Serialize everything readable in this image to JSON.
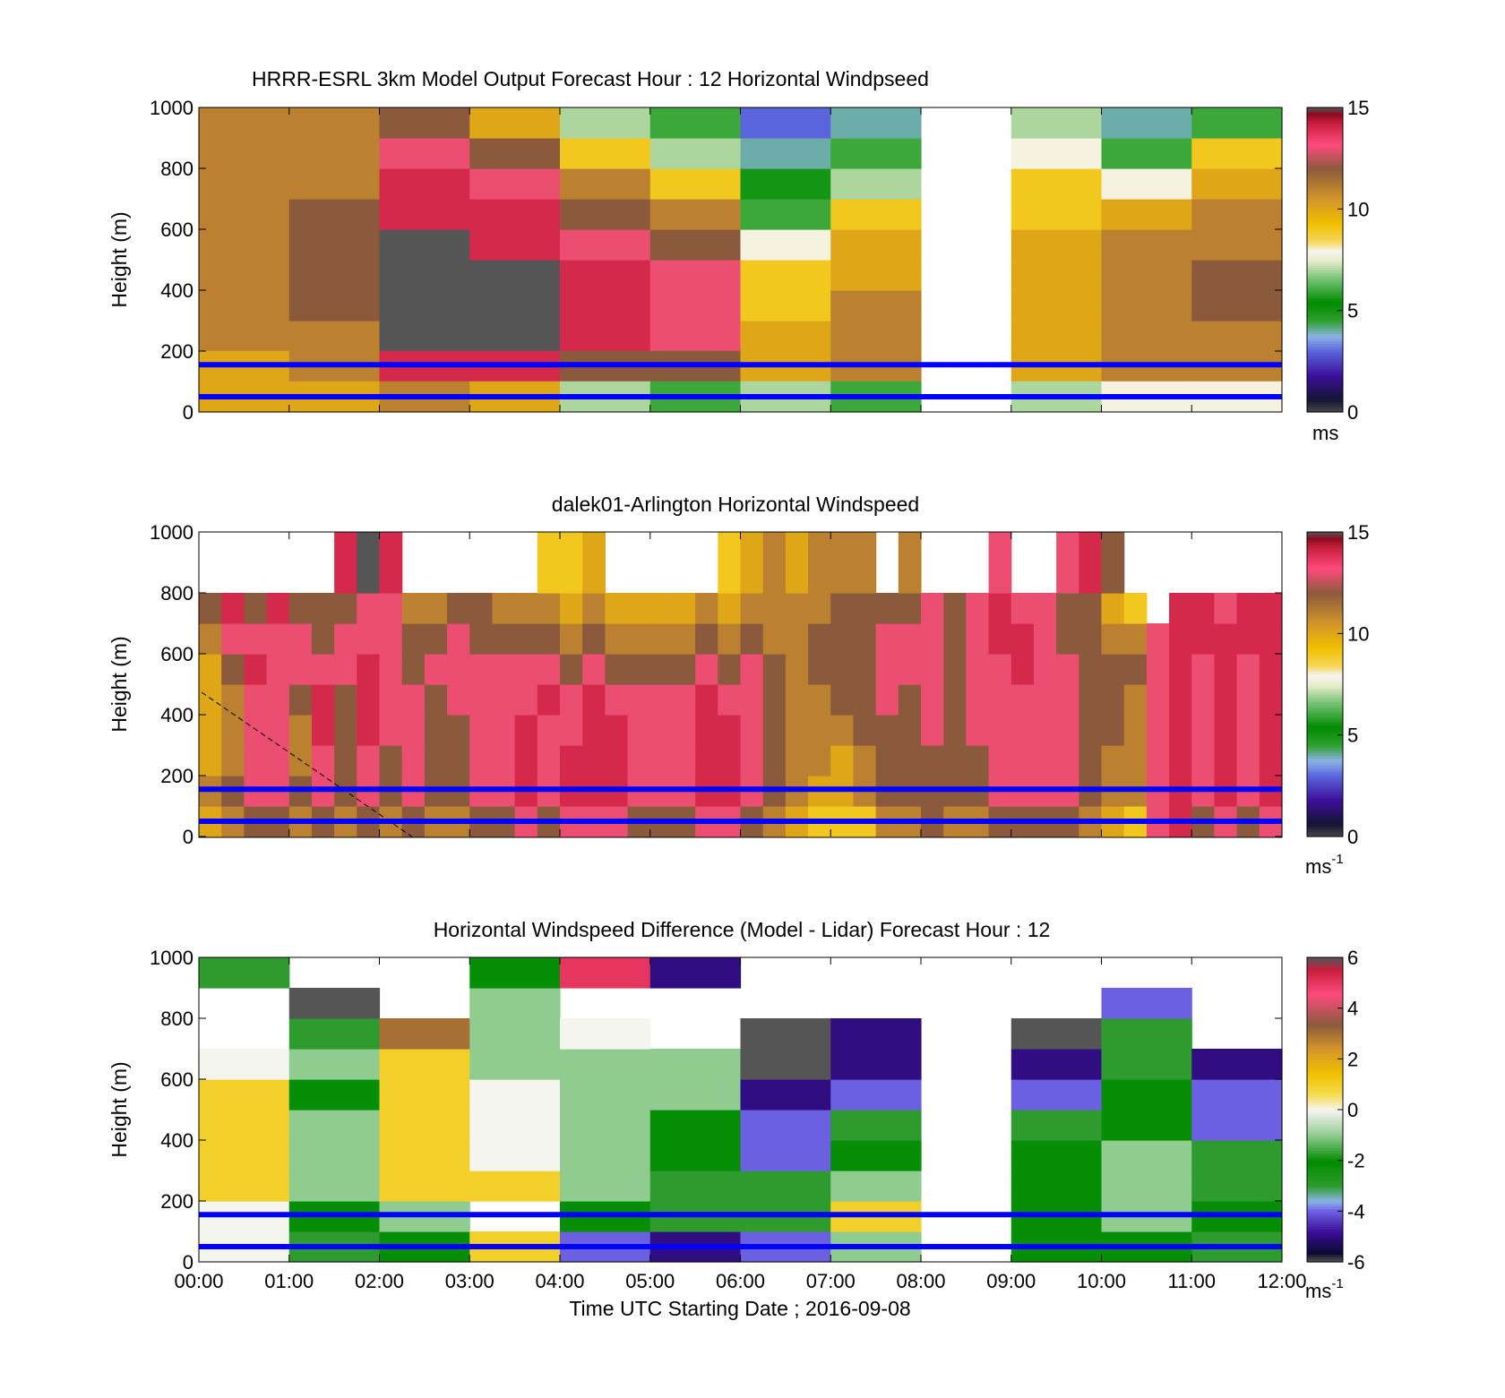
{
  "chart_data": [
    {
      "type": "heatmap",
      "title": "HRRR-ESRL 3km Model Output   Forecast Hour : 12 Horizontal Windpseed",
      "ylabel": "Height (m)",
      "xlabel": "",
      "ylim": [
        0,
        1000
      ],
      "yticks": [
        "0",
        "200",
        "400",
        "600",
        "800",
        "1000"
      ],
      "xlim_hours": [
        0,
        12
      ],
      "colorbar": {
        "min": 0,
        "max": 15,
        "ticks": [
          "0",
          "5",
          "10",
          "15"
        ],
        "unit": "ms",
        "unit_sup": "",
        "palette": "speed"
      },
      "reference_lines_m": [
        50,
        155
      ],
      "reference_line_color": "#0000ff",
      "heights_m": [
        50,
        155,
        250,
        350,
        450,
        550,
        650,
        750,
        850,
        950
      ],
      "columns": [
        {
          "start_hour": 0,
          "values": [
            10,
            10,
            11,
            11,
            11,
            11,
            11,
            11,
            11,
            11
          ]
        },
        {
          "start_hour": 1,
          "values": [
            10,
            11,
            11,
            12,
            12,
            12,
            12,
            11,
            11,
            11
          ]
        },
        {
          "start_hour": 2,
          "values": [
            11,
            14,
            15,
            15,
            15,
            15,
            14,
            14,
            13,
            12
          ]
        },
        {
          "start_hour": 3,
          "values": [
            10,
            14,
            15,
            15,
            15,
            14,
            14,
            13,
            12,
            10
          ]
        },
        {
          "start_hour": 4,
          "values": [
            7,
            12,
            14,
            14,
            14,
            13,
            12,
            11,
            9,
            7
          ]
        },
        {
          "start_hour": 5,
          "values": [
            6,
            12,
            13,
            13,
            13,
            12,
            11,
            9,
            7,
            6
          ]
        },
        {
          "start_hour": 6,
          "values": [
            7,
            10,
            10,
            9,
            9,
            8,
            6,
            5,
            4,
            3
          ]
        },
        {
          "start_hour": 7,
          "values": [
            6,
            11,
            11,
            11,
            10,
            10,
            9,
            7,
            6,
            4
          ]
        },
        {
          "start_hour": 8,
          "values": [
            null,
            null,
            null,
            null,
            null,
            null,
            null,
            null,
            null,
            null
          ]
        },
        {
          "start_hour": 9,
          "values": [
            7,
            10,
            10,
            10,
            10,
            10,
            9,
            9,
            8,
            7
          ]
        },
        {
          "start_hour": 10,
          "values": [
            8,
            11,
            11,
            11,
            11,
            11,
            10,
            8,
            6,
            4
          ]
        },
        {
          "start_hour": 11,
          "values": [
            8,
            11,
            11,
            12,
            12,
            11,
            11,
            10,
            9,
            6
          ]
        }
      ]
    },
    {
      "type": "heatmap",
      "title": "dalek01-Arlington  Horizontal Windspeed",
      "ylabel": "Height (m)",
      "xlabel": "",
      "ylim": [
        0,
        1000
      ],
      "yticks": [
        "0",
        "200",
        "400",
        "600",
        "800",
        "1000"
      ],
      "xlim_hours": [
        0,
        12
      ],
      "colorbar": {
        "min": 0,
        "max": 15,
        "ticks": [
          "0",
          "5",
          "10",
          "15"
        ],
        "unit": "ms",
        "unit_sup": "-1",
        "palette": "speed"
      },
      "reference_lines_m": [
        50,
        155
      ],
      "reference_line_color": "#0000ff",
      "heights_m": [
        50,
        150,
        250,
        350,
        450,
        550,
        650,
        750,
        850
      ],
      "columns": [
        {
          "start_hour": 0.0,
          "values": [
            10,
            11,
            10,
            10,
            10,
            10,
            11,
            12,
            null
          ]
        },
        {
          "start_hour": 0.25,
          "values": [
            11,
            12,
            11,
            11,
            11,
            12,
            13,
            14,
            null
          ]
        },
        {
          "start_hour": 0.5,
          "values": [
            12,
            13,
            13,
            13,
            13,
            14,
            13,
            12,
            null
          ]
        },
        {
          "start_hour": 0.75,
          "values": [
            12,
            13,
            13,
            13,
            13,
            13,
            13,
            14,
            null
          ]
        },
        {
          "start_hour": 1.0,
          "values": [
            11,
            12,
            11,
            11,
            12,
            13,
            13,
            12,
            null
          ]
        },
        {
          "start_hour": 1.25,
          "values": [
            12,
            13,
            13,
            14,
            14,
            13,
            12,
            12,
            null
          ]
        },
        {
          "start_hour": 1.5,
          "values": [
            11,
            12,
            12,
            12,
            12,
            13,
            13,
            12,
            14
          ]
        },
        {
          "start_hour": 1.75,
          "values": [
            12,
            13,
            13,
            14,
            14,
            14,
            13,
            13,
            15
          ]
        },
        {
          "start_hour": 2.0,
          "values": [
            11,
            12,
            12,
            13,
            13,
            13,
            13,
            13,
            14
          ]
        },
        {
          "start_hour": 2.25,
          "values": [
            12,
            13,
            13,
            13,
            13,
            12,
            12,
            11,
            null
          ]
        },
        {
          "start_hour": 2.5,
          "values": [
            11,
            12,
            12,
            12,
            12,
            13,
            12,
            11,
            null
          ]
        },
        {
          "start_hour": 2.75,
          "values": [
            11,
            12,
            12,
            12,
            13,
            13,
            13,
            12,
            null
          ]
        },
        {
          "start_hour": 3.0,
          "values": [
            12,
            13,
            13,
            13,
            13,
            13,
            12,
            12,
            null
          ]
        },
        {
          "start_hour": 3.25,
          "values": [
            12,
            13,
            13,
            13,
            13,
            13,
            12,
            11,
            null
          ]
        },
        {
          "start_hour": 3.5,
          "values": [
            13,
            14,
            14,
            14,
            13,
            13,
            12,
            11,
            null
          ]
        },
        {
          "start_hour": 3.75,
          "values": [
            12,
            13,
            13,
            13,
            14,
            13,
            12,
            11,
            9
          ]
        },
        {
          "start_hour": 4.0,
          "values": [
            13,
            14,
            14,
            13,
            13,
            12,
            11,
            10,
            9
          ]
        },
        {
          "start_hour": 4.25,
          "values": [
            13,
            14,
            14,
            14,
            14,
            13,
            12,
            11,
            10
          ]
        },
        {
          "start_hour": 4.5,
          "values": [
            13,
            14,
            14,
            14,
            13,
            12,
            11,
            10,
            null
          ]
        },
        {
          "start_hour": 4.75,
          "values": [
            12,
            13,
            13,
            13,
            13,
            12,
            11,
            10,
            null
          ]
        },
        {
          "start_hour": 5.0,
          "values": [
            12,
            13,
            13,
            13,
            13,
            12,
            11,
            10,
            null
          ]
        },
        {
          "start_hour": 5.25,
          "values": [
            12,
            13,
            13,
            13,
            13,
            12,
            11,
            10,
            null
          ]
        },
        {
          "start_hour": 5.5,
          "values": [
            13,
            14,
            14,
            14,
            14,
            13,
            12,
            11,
            null
          ]
        },
        {
          "start_hour": 5.75,
          "values": [
            13,
            14,
            14,
            14,
            13,
            12,
            11,
            10,
            9
          ]
        },
        {
          "start_hour": 6.0,
          "values": [
            12,
            13,
            13,
            13,
            13,
            13,
            12,
            11,
            10
          ]
        },
        {
          "start_hour": 6.25,
          "values": [
            11,
            12,
            12,
            12,
            12,
            12,
            11,
            11,
            11
          ]
        },
        {
          "start_hour": 6.5,
          "values": [
            10,
            11,
            11,
            11,
            11,
            11,
            11,
            11,
            10
          ]
        },
        {
          "start_hour": 6.75,
          "values": [
            9,
            10,
            11,
            11,
            11,
            12,
            12,
            11,
            11
          ]
        },
        {
          "start_hour": 7.0,
          "values": [
            9,
            10,
            10,
            11,
            12,
            12,
            12,
            12,
            11
          ]
        },
        {
          "start_hour": 7.25,
          "values": [
            9,
            11,
            11,
            12,
            12,
            12,
            12,
            12,
            11
          ]
        },
        {
          "start_hour": 7.5,
          "values": [
            11,
            12,
            12,
            12,
            13,
            13,
            13,
            12,
            null
          ]
        },
        {
          "start_hour": 7.75,
          "values": [
            11,
            12,
            12,
            12,
            12,
            13,
            13,
            12,
            11
          ]
        },
        {
          "start_hour": 8.0,
          "values": [
            12,
            12,
            12,
            13,
            13,
            13,
            13,
            13,
            null
          ]
        },
        {
          "start_hour": 8.25,
          "values": [
            11,
            12,
            12,
            12,
            12,
            12,
            12,
            12,
            null
          ]
        },
        {
          "start_hour": 8.5,
          "values": [
            11,
            12,
            12,
            13,
            13,
            13,
            13,
            13,
            null
          ]
        },
        {
          "start_hour": 8.75,
          "values": [
            12,
            13,
            13,
            13,
            13,
            13,
            14,
            14,
            13
          ]
        },
        {
          "start_hour": 9.0,
          "values": [
            12,
            13,
            13,
            13,
            13,
            14,
            14,
            13,
            null
          ]
        },
        {
          "start_hour": 9.25,
          "values": [
            12,
            13,
            13,
            13,
            13,
            13,
            13,
            13,
            null
          ]
        },
        {
          "start_hour": 9.5,
          "values": [
            12,
            13,
            13,
            13,
            13,
            13,
            12,
            12,
            13
          ]
        },
        {
          "start_hour": 9.75,
          "values": [
            11,
            12,
            12,
            12,
            12,
            12,
            12,
            12,
            14
          ]
        },
        {
          "start_hour": 10.0,
          "values": [
            10,
            11,
            11,
            12,
            12,
            12,
            11,
            10,
            12
          ]
        },
        {
          "start_hour": 10.25,
          "values": [
            9,
            11,
            11,
            11,
            11,
            12,
            11,
            9,
            null
          ]
        },
        {
          "start_hour": 10.5,
          "values": [
            13,
            13,
            13,
            13,
            13,
            13,
            13,
            null,
            null
          ]
        },
        {
          "start_hour": 10.75,
          "values": [
            14,
            14,
            14,
            14,
            14,
            14,
            14,
            14,
            null
          ]
        },
        {
          "start_hour": 11.0,
          "values": [
            12,
            13,
            13,
            13,
            13,
            13,
            14,
            14,
            null
          ]
        },
        {
          "start_hour": 11.25,
          "values": [
            13,
            14,
            14,
            14,
            14,
            14,
            14,
            13,
            null
          ]
        },
        {
          "start_hour": 11.5,
          "values": [
            12,
            13,
            13,
            13,
            13,
            13,
            14,
            14,
            null
          ]
        },
        {
          "start_hour": 11.75,
          "values": [
            13,
            14,
            14,
            14,
            14,
            14,
            14,
            14,
            null
          ]
        }
      ]
    },
    {
      "type": "heatmap",
      "title": "Horizontal Windspeed Difference (Model - Lidar) Forecast Hour : 12",
      "ylabel": "Height (m)",
      "xlabel": "Time UTC  Starting Date ; 2016-09-08",
      "ylim": [
        0,
        1000
      ],
      "yticks": [
        "0",
        "200",
        "400",
        "600",
        "800",
        "1000"
      ],
      "xlim_hours": [
        0,
        12
      ],
      "xticks": [
        "00:00",
        "01:00",
        "02:00",
        "03:00",
        "04:00",
        "05:00",
        "06:00",
        "07:00",
        "08:00",
        "09:00",
        "10:00",
        "11:00",
        "12:00"
      ],
      "colorbar": {
        "min": -6,
        "max": 6,
        "ticks": [
          "-6",
          "-4",
          "-2",
          "0",
          "2",
          "4",
          "6"
        ],
        "unit": "ms",
        "unit_sup": "-1",
        "palette": "diff"
      },
      "reference_lines_m": [
        50,
        155
      ],
      "reference_line_color": "#0000ff",
      "heights_m": [
        50,
        150,
        250,
        350,
        450,
        550,
        650,
        750,
        850,
        950
      ],
      "columns": [
        {
          "start_hour": 0,
          "values": [
            0,
            0,
            1,
            1,
            1,
            1,
            0,
            null,
            null,
            -3
          ]
        },
        {
          "start_hour": 1,
          "values": [
            -3,
            -2,
            -1,
            -1,
            -1,
            -2,
            -1,
            -3,
            -6,
            null
          ]
        },
        {
          "start_hour": 2,
          "values": [
            -2,
            -1,
            1,
            1,
            1,
            1,
            1,
            3,
            null,
            null
          ]
        },
        {
          "start_hour": 3,
          "values": [
            1,
            null,
            1,
            0,
            0,
            0,
            -1,
            -1,
            -1,
            -2
          ]
        },
        {
          "start_hour": 4,
          "values": [
            -4,
            -2,
            -1,
            -1,
            -1,
            -1,
            -1,
            0,
            null,
            5
          ]
        },
        {
          "start_hour": 5,
          "values": [
            -5,
            -3,
            -3,
            -2,
            -2,
            -1,
            -1,
            null,
            null,
            -5
          ]
        },
        {
          "start_hour": 6,
          "values": [
            -4,
            -3,
            -3,
            -4,
            -4,
            -5,
            -6,
            -6,
            null,
            null
          ]
        },
        {
          "start_hour": 7,
          "values": [
            -1,
            1,
            -1,
            -2,
            -3,
            -4,
            -5,
            -5,
            null,
            null
          ]
        },
        {
          "start_hour": 8,
          "values": [
            null,
            null,
            null,
            null,
            null,
            null,
            null,
            null,
            null,
            null
          ]
        },
        {
          "start_hour": 9,
          "values": [
            -2,
            -2,
            -2,
            -2,
            -3,
            -4,
            -5,
            -6,
            null,
            null
          ]
        },
        {
          "start_hour": 10,
          "values": [
            -2,
            -1,
            -1,
            -1,
            -2,
            -2,
            -3,
            -3,
            -4,
            null
          ]
        },
        {
          "start_hour": 11,
          "values": [
            -3,
            -2,
            -3,
            -3,
            -4,
            -4,
            -5,
            null,
            null,
            null
          ]
        }
      ]
    }
  ]
}
